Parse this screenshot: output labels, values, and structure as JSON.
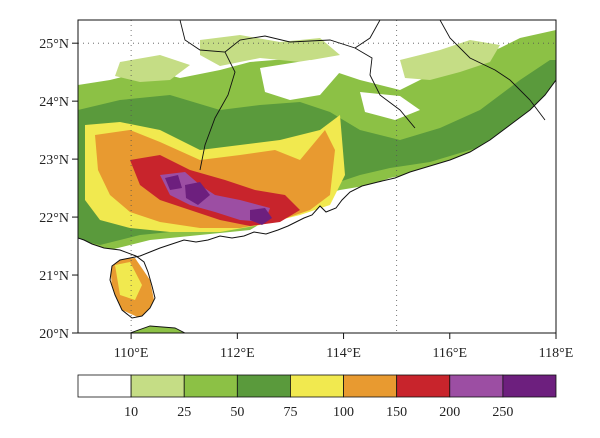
{
  "map": {
    "lon_range": [
      109,
      118
    ],
    "lat_range": [
      20,
      25.4
    ],
    "lon_ticks": [
      {
        "value": 110,
        "label": "110°E"
      },
      {
        "value": 112,
        "label": "112°E"
      },
      {
        "value": 114,
        "label": "114°E"
      },
      {
        "value": 116,
        "label": "116°E"
      },
      {
        "value": 118,
        "label": "118°E"
      }
    ],
    "lat_ticks": [
      {
        "value": 20,
        "label": "20°N"
      },
      {
        "value": 21,
        "label": "21°N"
      },
      {
        "value": 22,
        "label": "22°N"
      },
      {
        "value": 23,
        "label": "23°N"
      },
      {
        "value": 24,
        "label": "24°N"
      },
      {
        "value": 25,
        "label": "25°N"
      }
    ],
    "grid_lines_dotted": {
      "lon": [
        110,
        115
      ],
      "lat": [
        25
      ]
    }
  },
  "colorbar": {
    "colors": [
      "#ffffff",
      "#c5dd85",
      "#8cc145",
      "#5a9a3c",
      "#f1e94f",
      "#e89a30",
      "#c8242c",
      "#9c4ea3",
      "#6d1f7e"
    ],
    "tick_labels": [
      "10",
      "25",
      "50",
      "75",
      "100",
      "150",
      "200",
      "250"
    ]
  }
}
